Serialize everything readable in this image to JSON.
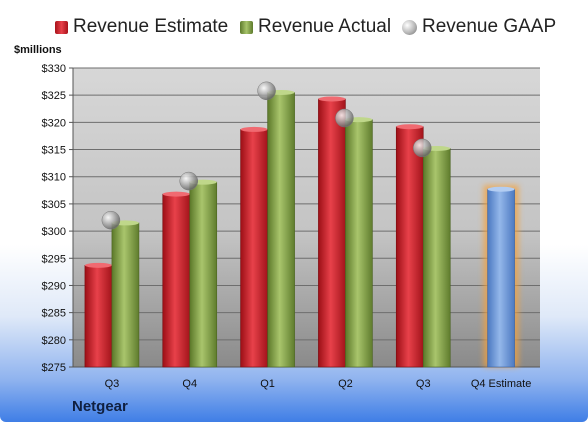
{
  "company": "Netgear",
  "unit_label": "$millions",
  "legend": {
    "estimate": "Revenue Estimate",
    "actual": "Revenue Actual",
    "gaap": "Revenue GAAP"
  },
  "colors": {
    "estimate": "#d3222b",
    "actual": "#8fae52",
    "gaap": "#b0b0b0",
    "forecast": "#6f9ad8",
    "forecast_glow": "#f5a13a"
  },
  "chart_data": {
    "type": "bar",
    "categories": [
      "Q3",
      "Q4",
      "Q1",
      "Q2",
      "Q3",
      "Q4 Estimate"
    ],
    "ylabel": "$millions",
    "ylim": [
      275,
      330
    ],
    "ytick_step": 5,
    "ytick_labels": [
      "$275",
      "$280",
      "$285",
      "$290",
      "$295",
      "$300",
      "$305",
      "$310",
      "$315",
      "$320",
      "$325",
      "$330"
    ],
    "grid": true,
    "legend_position": "top",
    "series": [
      {
        "name": "Revenue Estimate",
        "type": "bar",
        "values": [
          293.7,
          306.8,
          318.7,
          324.3,
          319.2,
          null
        ]
      },
      {
        "name": "Revenue Actual",
        "type": "bar",
        "values": [
          301.5,
          309.0,
          325.5,
          320.5,
          315.2,
          null
        ]
      },
      {
        "name": "Revenue GAAP",
        "type": "scatter",
        "values": [
          302.0,
          309.2,
          325.8,
          320.8,
          315.3,
          null
        ]
      }
    ],
    "forecast": {
      "category": "Q4 Estimate",
      "value": 307.7
    }
  }
}
